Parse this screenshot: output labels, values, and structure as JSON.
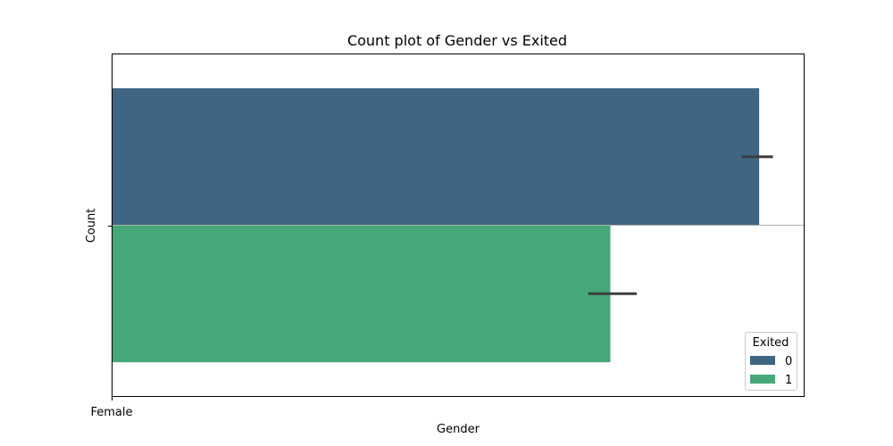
{
  "chart_data": {
    "type": "bar",
    "orientation": "horizontal",
    "title": "Count plot of Gender vs Exited",
    "xlabel": "Gender",
    "ylabel": "Count",
    "x_tick_labels": [
      "Female"
    ],
    "categories": [
      ""
    ],
    "xlim": [
      0,
      1
    ],
    "series": [
      {
        "name": "0",
        "values": [
          0.935
        ],
        "error": [
          0.91,
          0.955
        ],
        "color": "#3e6584"
      },
      {
        "name": "1",
        "values": [
          0.72
        ],
        "error": [
          0.688,
          0.758
        ],
        "color": "#46a879"
      }
    ],
    "legend": {
      "title": "Exited",
      "position": "lower-right",
      "entries": [
        "0",
        "1"
      ]
    },
    "grid": false
  }
}
